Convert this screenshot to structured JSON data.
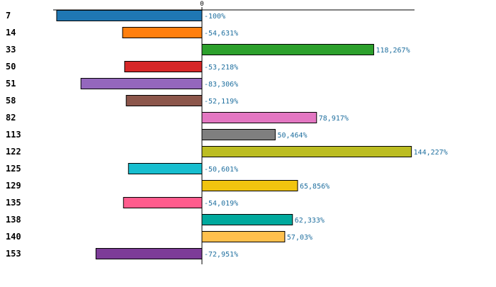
{
  "chart_data": {
    "type": "bar",
    "orientation": "horizontal",
    "title": "",
    "xlabel": "",
    "ylabel": "",
    "grid": false,
    "xlim": [
      -100,
      144.227
    ],
    "x_ticks": [
      {
        "value": 0,
        "label": "0"
      }
    ],
    "categories": [
      "7",
      "14",
      "33",
      "50",
      "51",
      "58",
      "82",
      "113",
      "122",
      "125",
      "129",
      "135",
      "138",
      "140",
      "153"
    ],
    "values": [
      -100,
      -54.631,
      118.267,
      -53.218,
      -83.306,
      -52.119,
      78.917,
      50.464,
      144.227,
      -50.601,
      65.856,
      -54.019,
      62.333,
      57.03,
      -72.951
    ],
    "value_labels": [
      "-100%",
      "-54,631%",
      "118,267%",
      "-53,218%",
      "-83,306%",
      "-52,119%",
      "78,917%",
      "50,464%",
      "144,227%",
      "-50,601%",
      "65,856%",
      "-54,019%",
      "62,333%",
      "57,03%",
      "-72,951%"
    ],
    "colors": [
      "#1f77b4",
      "#ff7f0e",
      "#2ca02c",
      "#d62728",
      "#9467bd",
      "#8c564b",
      "#e377c2",
      "#7f7f7f",
      "#bcbd22",
      "#17becf",
      "#f1c40f",
      "#ff5c8d",
      "#00a99d",
      "#ffc04d",
      "#7d3c98"
    ],
    "value_label_color": "#1f6f9f"
  }
}
